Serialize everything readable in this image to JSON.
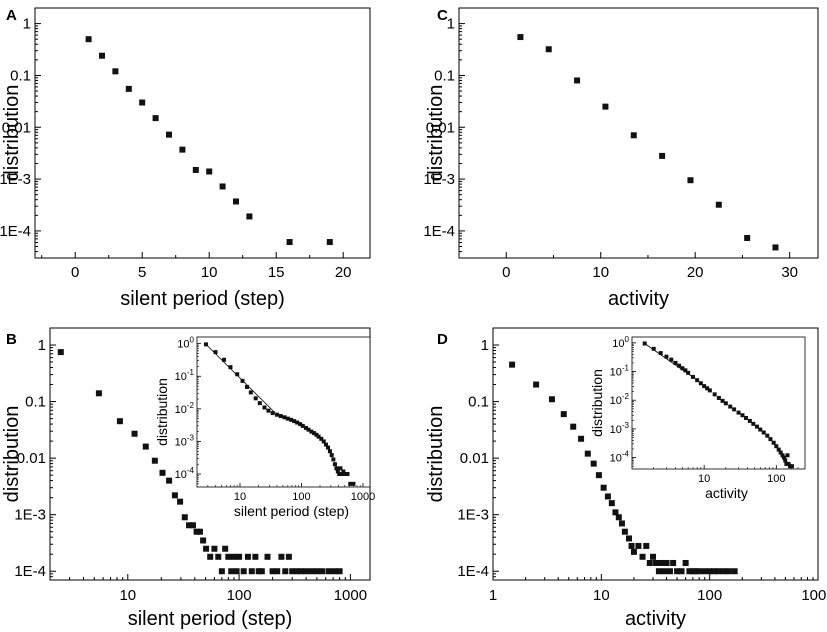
{
  "chart_data": [
    {
      "panel": "A",
      "type": "scatter",
      "xlabel": "silent period (step)",
      "ylabel": "distribution",
      "xscale": "linear",
      "yscale": "log",
      "xlim": [
        -3,
        22
      ],
      "ylim": [
        3e-05,
        2
      ],
      "xticks": [
        0,
        5,
        10,
        15,
        20
      ],
      "xticklabels": [
        "0",
        "5",
        "10",
        "15",
        "20"
      ],
      "yticks": [
        1,
        0.1,
        0.01,
        0.001,
        0.0001
      ],
      "yticklabels": [
        "1",
        "0.1",
        "0.01",
        "1E-3",
        "1E-4"
      ],
      "x": [
        1,
        2,
        3,
        4,
        5,
        6,
        7,
        8,
        9,
        10,
        11,
        12,
        13,
        16,
        19
      ],
      "y": [
        0.5,
        0.24,
        0.12,
        0.055,
        0.03,
        0.015,
        0.0072,
        0.0037,
        0.0015,
        0.0014,
        0.00072,
        0.00037,
        0.00019,
        6.1e-05,
        6.1e-05
      ]
    },
    {
      "panel": "C",
      "type": "scatter",
      "xlabel": "activity",
      "ylabel": "distribution",
      "xscale": "linear",
      "yscale": "log",
      "xlim": [
        -5,
        33
      ],
      "ylim": [
        3e-05,
        2
      ],
      "xticks": [
        0,
        10,
        20,
        30
      ],
      "xticklabels": [
        "0",
        "10",
        "20",
        "30"
      ],
      "yticks": [
        1,
        0.1,
        0.01,
        0.001,
        0.0001
      ],
      "yticklabels": [
        "1",
        "0.1",
        "0.01",
        "1E-3",
        "1E-4"
      ],
      "x": [
        1.5,
        4.5,
        7.5,
        10.5,
        13.5,
        16.5,
        19.5,
        22.5,
        25.5,
        28.5
      ],
      "y": [
        0.55,
        0.32,
        0.08,
        0.025,
        0.007,
        0.0028,
        0.00095,
        0.00032,
        7.3e-05,
        4.8e-05
      ]
    },
    {
      "panel": "B",
      "type": "scatter",
      "xlabel": "silent period (step)",
      "ylabel": "distribution",
      "xscale": "log",
      "yscale": "log",
      "xlim": [
        2,
        1500
      ],
      "ylim": [
        7e-05,
        2
      ],
      "xticks": [
        10,
        100,
        1000
      ],
      "xticklabels": [
        "10",
        "100",
        "1000"
      ],
      "yticks": [
        1,
        0.1,
        0.01,
        0.001,
        0.0001
      ],
      "yticklabels": [
        "1",
        "0.1",
        "0.01",
        "1E-3",
        "1E-4"
      ],
      "x": [
        2.5,
        5.5,
        8.5,
        11.5,
        14.5,
        17.5,
        20.5,
        23.5,
        26.5,
        29.5,
        32.5,
        35.5,
        38.5,
        41.5,
        44.5,
        47.5,
        50.5,
        55,
        60,
        65,
        70,
        75,
        80,
        85,
        90,
        95,
        100,
        110,
        120,
        130,
        140,
        150,
        160,
        180,
        200,
        220,
        240,
        260,
        280,
        300,
        330,
        360,
        400,
        450,
        500,
        560,
        640,
        720,
        800
      ],
      "y": [
        0.75,
        0.14,
        0.045,
        0.027,
        0.016,
        0.009,
        0.0055,
        0.004,
        0.0022,
        0.0017,
        0.0009,
        0.00065,
        0.00065,
        0.0005,
        0.0005,
        0.00035,
        0.00025,
        0.00018,
        0.00025,
        0.00018,
        0.0001,
        0.00025,
        0.00018,
        0.0001,
        0.00018,
        0.0001,
        0.00018,
        0.0001,
        0.00018,
        0.0001,
        0.00018,
        0.0001,
        0.0001,
        0.00018,
        0.0001,
        0.0001,
        0.00018,
        0.0001,
        0.00018,
        0.0001,
        0.0001,
        0.0001,
        0.0001,
        0.0001,
        0.0001,
        0.0001,
        0.0001,
        0.0001,
        0.0001
      ],
      "inset": {
        "xlabel": "silent period (step)",
        "ylabel": "distribution",
        "xscale": "log",
        "yscale": "log",
        "xlim": [
          2,
          1300
        ],
        "ylim": [
          4e-05,
          1.6
        ],
        "xticks": [
          10,
          100,
          1000
        ],
        "xticklabels": [
          "10",
          "100",
          "1000"
        ],
        "yexponents": [
          0,
          -1,
          -2,
          -3,
          -4
        ],
        "ybase": "10",
        "x": [
          2.8,
          4,
          5.5,
          7,
          9,
          11,
          13,
          15,
          18,
          21,
          25,
          29,
          34,
          40,
          46,
          53,
          60,
          68,
          76,
          85,
          95,
          105,
          118,
          130,
          145,
          160,
          175,
          190,
          210,
          230,
          250,
          270,
          290,
          310,
          330,
          350,
          370,
          390,
          410,
          430,
          450,
          480,
          520,
          560,
          620,
          700
        ],
        "y": [
          0.95,
          0.55,
          0.32,
          0.19,
          0.115,
          0.072,
          0.047,
          0.032,
          0.021,
          0.015,
          0.011,
          0.0088,
          0.0074,
          0.0066,
          0.006,
          0.0055,
          0.005,
          0.0046,
          0.0042,
          0.0038,
          0.0034,
          0.003,
          0.0026,
          0.0023,
          0.002,
          0.0018,
          0.0016,
          0.0014,
          0.0012,
          0.001,
          0.0008,
          0.00065,
          0.0005,
          0.00038,
          0.00028,
          0.0002,
          0.00015,
          0.00012,
          0.0001,
          0.00015,
          0.0001,
          0.00012,
          0.0001,
          0.0001,
          5e-05,
          5e-05
        ],
        "fit_line": {
          "x": [
            2.8,
            40
          ],
          "y": [
            0.95,
            0.0066
          ]
        }
      }
    },
    {
      "panel": "D",
      "type": "scatter",
      "xlabel": "activity",
      "ylabel": "distribution",
      "xscale": "log",
      "yscale": "log",
      "xlim": [
        1,
        1000
      ],
      "ylim": [
        7e-05,
        2
      ],
      "xticks": [
        1,
        10,
        100,
        1000
      ],
      "xticklabels": [
        "1",
        "10",
        "100",
        "1000"
      ],
      "yticks": [
        1,
        0.1,
        0.01,
        0.001,
        0.0001
      ],
      "yticklabels": [
        "1",
        "0.1",
        "0.01",
        "1E-3",
        "1E-4"
      ],
      "x": [
        1.5,
        2.5,
        3.5,
        4.5,
        5.5,
        6.5,
        7.5,
        8.5,
        9.5,
        10.5,
        11.5,
        12.5,
        13.5,
        14.5,
        15.5,
        16.5,
        18,
        19,
        20,
        22,
        24,
        26,
        28,
        30,
        32,
        34,
        36,
        38,
        40,
        43,
        46,
        50,
        55,
        60,
        65,
        70,
        75,
        80,
        90,
        100,
        110,
        120,
        135,
        150,
        170
      ],
      "y": [
        0.45,
        0.2,
        0.11,
        0.06,
        0.036,
        0.022,
        0.012,
        0.008,
        0.005,
        0.003,
        0.0021,
        0.0016,
        0.0011,
        0.0009,
        0.0007,
        0.0005,
        0.00038,
        0.00028,
        0.00022,
        0.00028,
        0.00018,
        0.00028,
        0.00014,
        0.00018,
        0.00014,
        0.0001,
        0.00014,
        0.0001,
        0.00014,
        0.0001,
        0.00014,
        0.0001,
        0.0001,
        0.00014,
        0.0001,
        0.0001,
        0.0001,
        0.0001,
        0.0001,
        0.0001,
        0.0001,
        0.0001,
        0.0001,
        0.0001,
        0.0001
      ],
      "inset": {
        "xlabel": "activity",
        "ylabel": "distribution",
        "xscale": "log",
        "yscale": "log",
        "xlim": [
          1,
          250
        ],
        "ylim": [
          4e-05,
          1.6
        ],
        "xticks": [
          10,
          100
        ],
        "xticklabels": [
          "10",
          "100"
        ],
        "yexponents": [
          0,
          -1,
          -2,
          -3,
          -4
        ],
        "ybase": "10",
        "x": [
          1.5,
          2,
          2.5,
          3,
          3.5,
          4,
          4.5,
          5,
          5.5,
          6,
          7,
          8,
          9,
          10,
          11,
          12,
          14,
          16,
          18,
          20,
          23,
          26,
          30,
          34,
          38,
          43,
          48,
          54,
          60,
          67,
          75,
          83,
          92,
          100,
          108,
          115,
          122,
          128,
          133,
          138,
          143,
          148,
          155,
          165
        ],
        "y": [
          0.95,
          0.62,
          0.44,
          0.33,
          0.26,
          0.2,
          0.16,
          0.13,
          0.11,
          0.09,
          0.065,
          0.05,
          0.039,
          0.031,
          0.026,
          0.022,
          0.016,
          0.012,
          0.0095,
          0.0078,
          0.006,
          0.0048,
          0.0037,
          0.003,
          0.0024,
          0.0019,
          0.0015,
          0.0012,
          0.00095,
          0.00075,
          0.00058,
          0.00044,
          0.00033,
          0.00025,
          0.00019,
          0.00015,
          0.00012,
          0.0001,
          8e-05,
          6e-05,
          0.00012,
          6e-05,
          5e-05,
          5e-05
        ],
        "fit_line": {
          "x": [
            1.5,
            8
          ],
          "y": [
            0.95,
            0.05
          ]
        }
      }
    }
  ]
}
